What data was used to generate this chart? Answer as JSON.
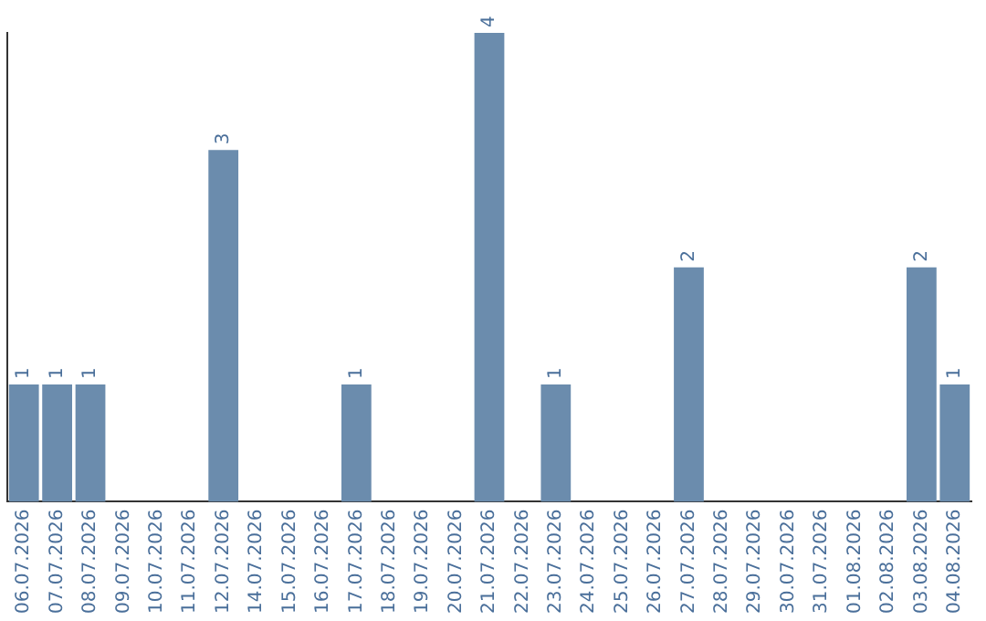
{
  "chart_data": {
    "type": "bar",
    "categories": [
      "06.07.2026",
      "07.07.2026",
      "08.07.2026",
      "09.07.2026",
      "10.07.2026",
      "11.07.2026",
      "12.07.2026",
      "14.07.2026",
      "15.07.2026",
      "16.07.2026",
      "17.07.2026",
      "18.07.2026",
      "19.07.2026",
      "20.07.2026",
      "21.07.2026",
      "22.07.2026",
      "23.07.2026",
      "24.07.2026",
      "25.07.2026",
      "26.07.2026",
      "27.07.2026",
      "28.07.2026",
      "29.07.2026",
      "30.07.2026",
      "31.07.2026",
      "01.08.2026",
      "02.08.2026",
      "03.08.2026",
      "04.08.2026"
    ],
    "values": [
      1,
      1,
      1,
      0,
      0,
      0,
      3,
      0,
      0,
      0,
      1,
      0,
      0,
      0,
      4,
      0,
      1,
      0,
      0,
      0,
      2,
      0,
      0,
      0,
      0,
      0,
      0,
      2,
      1
    ],
    "value_labels": [
      "1",
      "1",
      "1",
      null,
      null,
      null,
      "3",
      null,
      null,
      null,
      "1",
      null,
      null,
      null,
      "4",
      null,
      "1",
      null,
      null,
      null,
      "2",
      null,
      null,
      null,
      null,
      null,
      null,
      "2",
      "1"
    ],
    "color": "#6b8cad",
    "tick_labels": "x",
    "grid": false,
    "legend": false
  }
}
